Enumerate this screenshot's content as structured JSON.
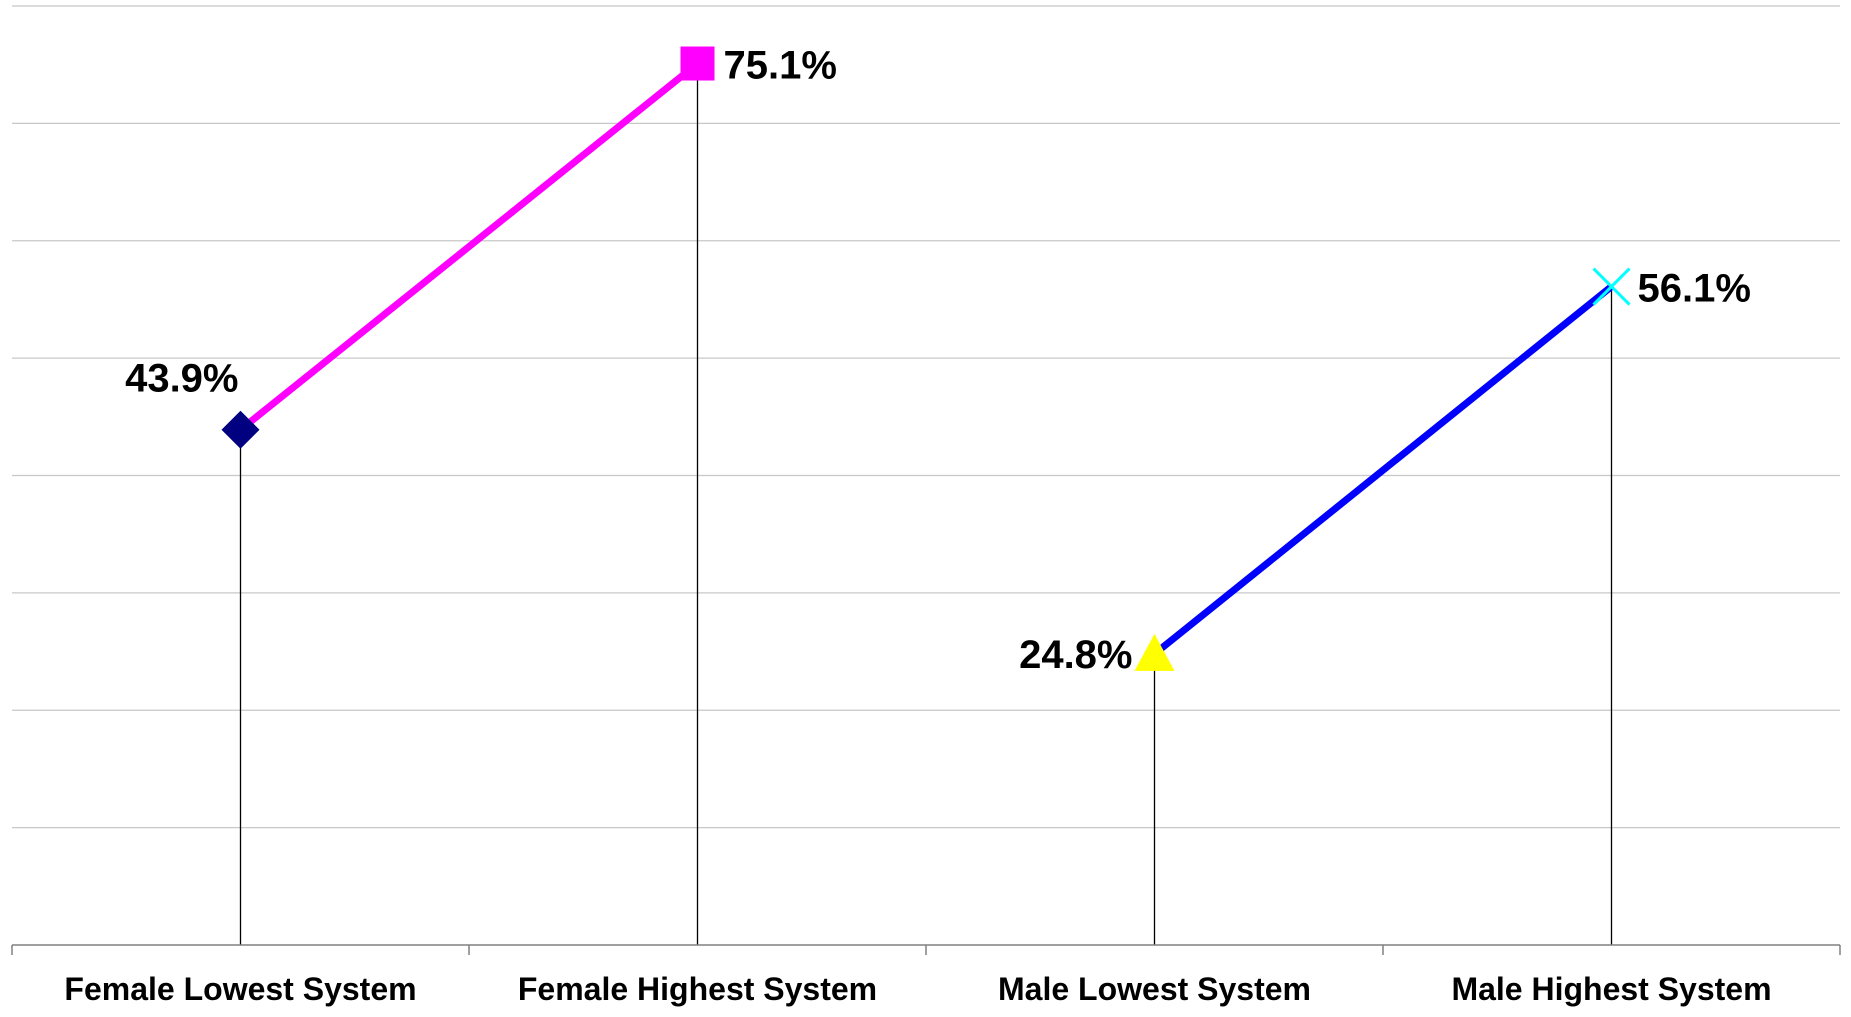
{
  "chart_data": {
    "type": "line",
    "title": "",
    "xlabel": "",
    "ylabel": "",
    "categories": [
      "Female Lowest System",
      "Female Highest System",
      "Male Lowest System",
      "Male Highest System"
    ],
    "ylim": [
      0,
      80
    ],
    "y_gridline_step": 10,
    "grid": true,
    "legend": "none",
    "series": [
      {
        "values": [
          43.9,
          75.1,
          null,
          null
        ],
        "labels": [
          "43.9%",
          "75.1%",
          "",
          ""
        ],
        "line_color": "#ff00ff",
        "markers": [
          "diamond",
          "square",
          "",
          ""
        ],
        "marker_colors": [
          "#000080",
          "#ff00ff",
          "",
          ""
        ]
      },
      {
        "values": [
          null,
          null,
          24.8,
          56.1
        ],
        "labels": [
          "",
          "",
          "24.8%",
          "56.1%"
        ],
        "line_color": "#0000ff",
        "markers": [
          "",
          "",
          "triangle",
          "x"
        ],
        "marker_colors": [
          "",
          "",
          "#ffff00",
          "#00ffff"
        ]
      }
    ],
    "drop_lines": true
  }
}
